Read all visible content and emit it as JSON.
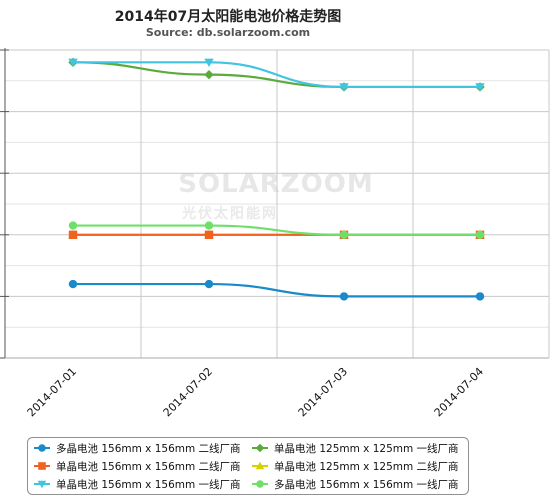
{
  "chart_data": {
    "type": "line",
    "title": "2014年07月太阳能电池价格走势图",
    "subtitle": "Source: db.solarzoom.com",
    "watermark": {
      "brand": "SOLARZOOM",
      "tagline": "光伏太阳能网"
    },
    "categories": [
      "2014-07-01",
      "2014-07-02",
      "2014-07-03",
      "2014-07-04"
    ],
    "ylim": [
      0,
      5
    ],
    "grid": true,
    "legend_position": "bottom",
    "series": [
      {
        "name": "多晶电池 156mm x 156mm 二线厂商",
        "color": "#1a8bc8",
        "marker": "circle",
        "values": [
          1.2,
          1.2,
          1.0,
          1.0
        ]
      },
      {
        "name": "单晶电池 125mm x 125mm 一线厂商",
        "color": "#5aaa3c",
        "marker": "diamond",
        "values": [
          4.8,
          4.6,
          4.4,
          4.4
        ]
      },
      {
        "name": "单晶电池 156mm x 156mm 二线厂商",
        "color": "#f0621e",
        "marker": "square",
        "values": [
          2.0,
          2.0,
          2.0,
          2.0
        ]
      },
      {
        "name": "单晶电池 125mm x 125mm 二线厂商",
        "color": "#d6d000",
        "marker": "triangle",
        "values": [
          2.0,
          2.0,
          2.0,
          2.0
        ]
      },
      {
        "name": "单晶电池 156mm x 156mm 一线厂商",
        "color": "#40c4e0",
        "marker": "triangle-down",
        "values": [
          4.8,
          4.8,
          4.4,
          4.4
        ]
      },
      {
        "name": "多晶电池 156mm x 156mm 一线厂商",
        "color": "#6ee06a",
        "marker": "circle",
        "values": [
          2.15,
          2.15,
          2.0,
          2.0
        ]
      }
    ]
  }
}
